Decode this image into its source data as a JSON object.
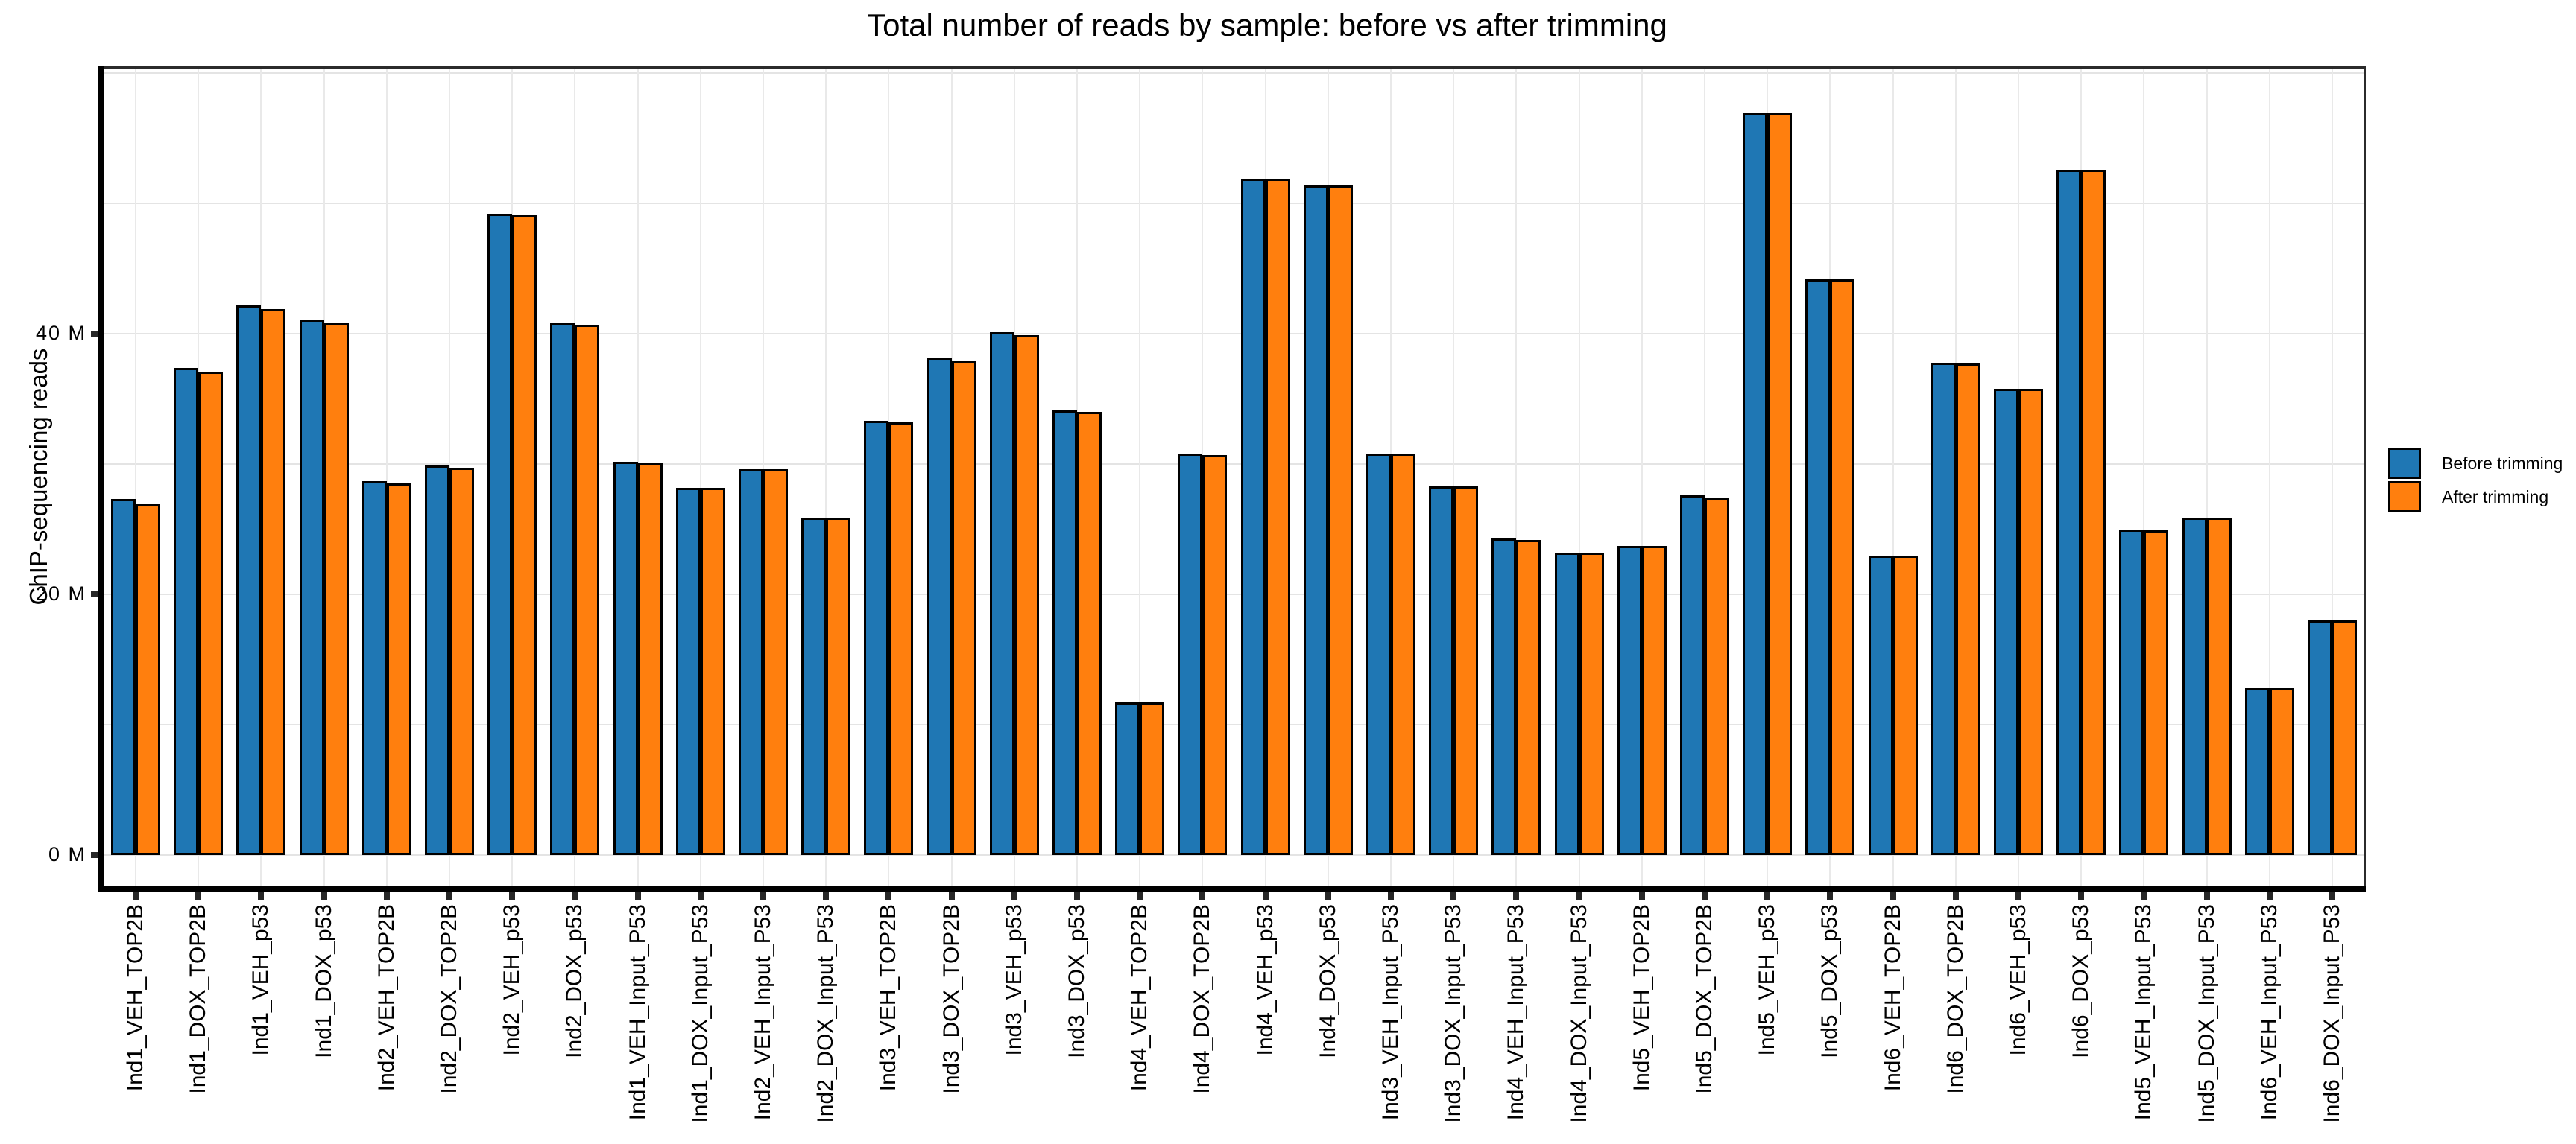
{
  "title": "Total number of reads by sample: before vs after trimming",
  "y_axis": {
    "label": "ChIP-sequencing reads",
    "tick_values": [
      0,
      20,
      40
    ],
    "tick_labels": [
      "0 M",
      "20 M",
      "40 M"
    ]
  },
  "legend": {
    "items": [
      {
        "label": "Before trimming",
        "color": "#1f77b4"
      },
      {
        "label": "After trimming",
        "color": "#ff7f0e"
      }
    ]
  },
  "chart_data": {
    "type": "bar",
    "title": "Total number of reads by sample: before vs after trimming",
    "xlabel": "",
    "ylabel": "ChIP-sequencing reads",
    "unit": "millions of reads (M)",
    "ylim": [
      -2.8,
      60.6
    ],
    "grid": true,
    "gridline_interval_M": 10,
    "legend_position": "right",
    "categories": [
      "Ind1_VEH_TOP2B",
      "Ind1_DOX_TOP2B",
      "Ind1_VEH_p53",
      "Ind1_DOX_p53",
      "Ind2_VEH_TOP2B",
      "Ind2_DOX_TOP2B",
      "Ind2_VEH_p53",
      "Ind2_DOX_p53",
      "Ind1_VEH_Input_P53",
      "Ind1_DOX_Input_P53",
      "Ind2_VEH_Input_P53",
      "Ind2_DOX_Input_P53",
      "Ind3_VEH_TOP2B",
      "Ind3_DOX_TOP2B",
      "Ind3_VEH_p53",
      "Ind3_DOX_p53",
      "Ind4_VEH_TOP2B",
      "Ind4_DOX_TOP2B",
      "Ind4_VEH_p53",
      "Ind4_DOX_p53",
      "Ind3_VEH_Input_P53",
      "Ind3_DOX_Input_P53",
      "Ind4_VEH_Input_P53",
      "Ind4_DOX_Input_P53",
      "Ind5_VEH_TOP2B",
      "Ind5_DOX_TOP2B",
      "Ind5_VEH_p53",
      "Ind5_DOX_p53",
      "Ind6_VEH_TOP2B",
      "Ind6_DOX_TOP2B",
      "Ind6_VEH_p53",
      "Ind6_DOX_p53",
      "Ind5_VEH_Input_P53",
      "Ind5_DOX_Input_P53",
      "Ind6_VEH_Input_P53",
      "Ind6_DOX_Input_P53"
    ],
    "series": [
      {
        "name": "Before trimming",
        "color": "#1f77b4",
        "values": [
          27.3,
          37.4,
          42.2,
          41.1,
          28.7,
          29.9,
          49.2,
          40.8,
          30.2,
          28.2,
          29.6,
          25.9,
          33.3,
          38.1,
          40.1,
          34.1,
          11.7,
          30.8,
          51.9,
          51.4,
          30.8,
          28.3,
          24.3,
          23.2,
          23.7,
          27.6,
          56.9,
          44.2,
          23.0,
          37.8,
          35.8,
          52.6,
          25.0,
          25.9,
          12.8,
          18.0
        ]
      },
      {
        "name": "After trimming",
        "color": "#ff7f0e",
        "values": [
          26.9,
          37.1,
          41.9,
          40.8,
          28.5,
          29.7,
          49.1,
          40.7,
          30.1,
          28.2,
          29.6,
          25.9,
          33.2,
          37.9,
          39.9,
          34.0,
          11.7,
          30.7,
          51.9,
          51.4,
          30.8,
          28.3,
          24.2,
          23.2,
          23.7,
          27.4,
          56.9,
          44.2,
          23.0,
          37.7,
          35.8,
          52.6,
          24.9,
          25.9,
          12.8,
          18.0
        ]
      }
    ]
  }
}
